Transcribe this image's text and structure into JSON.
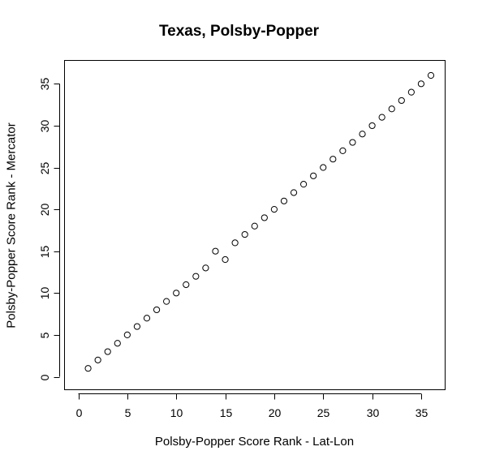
{
  "chart_data": {
    "type": "scatter",
    "title": "Texas, Polsby-Popper",
    "xlabel": "Polsby-Popper Score Rank - Lat-Lon",
    "ylabel": "Polsby-Popper Score Rank - Mercator",
    "xlim": [
      0,
      36
    ],
    "ylim": [
      0,
      36
    ],
    "xticks": [
      0,
      5,
      10,
      15,
      20,
      25,
      30,
      35
    ],
    "yticks": [
      0,
      5,
      10,
      15,
      20,
      25,
      30,
      35
    ],
    "grid": false,
    "marker": "open-circle",
    "points": [
      {
        "x": 1,
        "y": 1
      },
      {
        "x": 2,
        "y": 2
      },
      {
        "x": 3,
        "y": 3
      },
      {
        "x": 4,
        "y": 4
      },
      {
        "x": 5,
        "y": 5
      },
      {
        "x": 6,
        "y": 6
      },
      {
        "x": 7,
        "y": 7
      },
      {
        "x": 8,
        "y": 8
      },
      {
        "x": 9,
        "y": 9
      },
      {
        "x": 10,
        "y": 10
      },
      {
        "x": 11,
        "y": 11
      },
      {
        "x": 12,
        "y": 12
      },
      {
        "x": 13,
        "y": 13
      },
      {
        "x": 14,
        "y": 15
      },
      {
        "x": 15,
        "y": 14
      },
      {
        "x": 16,
        "y": 16
      },
      {
        "x": 17,
        "y": 17
      },
      {
        "x": 18,
        "y": 18
      },
      {
        "x": 19,
        "y": 19
      },
      {
        "x": 20,
        "y": 20
      },
      {
        "x": 21,
        "y": 21
      },
      {
        "x": 22,
        "y": 22
      },
      {
        "x": 23,
        "y": 23
      },
      {
        "x": 24,
        "y": 24
      },
      {
        "x": 25,
        "y": 25
      },
      {
        "x": 26,
        "y": 26
      },
      {
        "x": 27,
        "y": 27
      },
      {
        "x": 28,
        "y": 28
      },
      {
        "x": 29,
        "y": 29
      },
      {
        "x": 30,
        "y": 30
      },
      {
        "x": 31,
        "y": 31
      },
      {
        "x": 32,
        "y": 32
      },
      {
        "x": 33,
        "y": 33
      },
      {
        "x": 34,
        "y": 34
      },
      {
        "x": 35,
        "y": 35
      },
      {
        "x": 36,
        "y": 36
      }
    ]
  }
}
